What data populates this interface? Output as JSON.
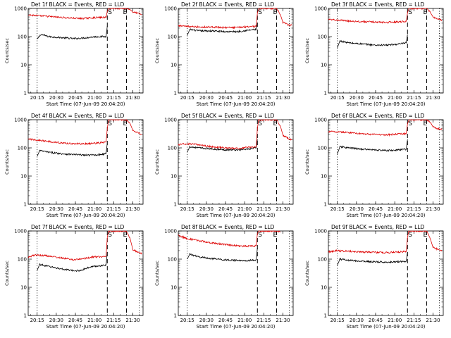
{
  "chart_data": [
    {
      "type": "line",
      "title": "Det 1f BLACK = Events, RED = LLD",
      "xlabel": "Start Time (07-Jun-09 20:04:20)",
      "ylabel": "Counts/sec",
      "yscale": "log",
      "ylim": [
        1,
        1000
      ],
      "yticks": [
        "1",
        "10",
        "100",
        "1000"
      ],
      "xticks": [
        "20:15",
        "20:30",
        "20:45",
        "21:00",
        "21:15",
        "21:30"
      ],
      "xlim_min": [
        4,
        94
      ],
      "markers": [
        "S",
        "E"
      ],
      "event_lines_min": {
        "dotted": [
          11,
          91
        ],
        "dashed": [
          66,
          81
        ]
      },
      "series": [
        {
          "name": "BLACK = Events",
          "color": "#000000",
          "x_min": [
            11,
            14,
            20,
            30,
            40,
            45,
            50,
            55,
            60,
            65,
            66
          ],
          "y": [
            80,
            120,
            100,
            92,
            85,
            88,
            92,
            98,
            100,
            100,
            240
          ]
        },
        {
          "name": "RED = LLD",
          "color": "#dd0000",
          "x_min": [
            4,
            10,
            20,
            30,
            40,
            45,
            50,
            55,
            60,
            65,
            66,
            67,
            75,
            81,
            84,
            86,
            90,
            93
          ],
          "y": [
            600,
            560,
            520,
            480,
            450,
            440,
            450,
            470,
            480,
            480,
            800,
            1000,
            1000,
            1000,
            900,
            750,
            680,
            600
          ]
        }
      ]
    },
    {
      "type": "line",
      "title": "Det 2f BLACK = Events, RED = LLD",
      "xlabel": "Start Time (07-Jun-09 20:04:20)",
      "ylabel": "Counts/sec",
      "yscale": "log",
      "ylim": [
        1,
        1000
      ],
      "yticks": [
        "1",
        "10",
        "100",
        "1000"
      ],
      "xticks": [
        "20:15",
        "20:30",
        "20:45",
        "21:00",
        "21:15",
        "21:30"
      ],
      "xlim_min": [
        4,
        94
      ],
      "markers": [
        "S",
        "E"
      ],
      "event_lines_min": {
        "dotted": [
          11,
          91
        ],
        "dashed": [
          66,
          81
        ]
      },
      "series": [
        {
          "name": "BLACK = Events",
          "color": "#000000",
          "x_min": [
            11,
            13,
            20,
            30,
            40,
            50,
            55,
            60,
            65,
            66
          ],
          "y": [
            110,
            180,
            160,
            160,
            150,
            150,
            160,
            170,
            180,
            300
          ]
        },
        {
          "name": "RED = LLD",
          "color": "#dd0000",
          "x_min": [
            4,
            10,
            20,
            30,
            40,
            50,
            55,
            60,
            65,
            66,
            67,
            75,
            81,
            84,
            86,
            90,
            93
          ],
          "y": [
            240,
            230,
            220,
            220,
            210,
            210,
            220,
            230,
            230,
            700,
            1000,
            1000,
            1000,
            600,
            320,
            260,
            250
          ]
        }
      ]
    },
    {
      "type": "line",
      "title": "Det 3f BLACK = Events, RED = LLD",
      "xlabel": "Start Time (07-Jun-09 20:04:20)",
      "ylabel": "Counts/sec",
      "yscale": "log",
      "ylim": [
        1,
        1000
      ],
      "yticks": [
        "1",
        "10",
        "100",
        "1000"
      ],
      "xticks": [
        "20:15",
        "20:30",
        "20:45",
        "21:00",
        "21:15",
        "21:30"
      ],
      "xlim_min": [
        4,
        94
      ],
      "markers": [
        "S",
        "E"
      ],
      "event_lines_min": {
        "dotted": [
          11,
          91
        ],
        "dashed": [
          66,
          81
        ]
      },
      "series": [
        {
          "name": "BLACK = Events",
          "color": "#000000",
          "x_min": [
            11,
            13,
            20,
            30,
            40,
            50,
            55,
            60,
            65,
            66
          ],
          "y": [
            40,
            70,
            60,
            55,
            50,
            50,
            52,
            55,
            60,
            120
          ]
        },
        {
          "name": "RED = LLD",
          "color": "#dd0000",
          "x_min": [
            4,
            10,
            20,
            30,
            40,
            50,
            55,
            60,
            65,
            66,
            67,
            75,
            81,
            84,
            86,
            90,
            93
          ],
          "y": [
            400,
            390,
            360,
            340,
            330,
            320,
            330,
            340,
            350,
            700,
            1000,
            1000,
            1000,
            700,
            500,
            420,
            380
          ]
        }
      ]
    },
    {
      "type": "line",
      "title": "Det 4f BLACK = Events, RED = LLD",
      "xlabel": "Start Time (07-Jun-09 20:04:20)",
      "ylabel": "Counts/sec",
      "yscale": "log",
      "ylim": [
        1,
        1000
      ],
      "yticks": [
        "1",
        "10",
        "100",
        "1000"
      ],
      "xticks": [
        "20:15",
        "20:30",
        "20:45",
        "21:00",
        "21:15",
        "21:30"
      ],
      "xlim_min": [
        4,
        94
      ],
      "markers": [
        "S",
        "E"
      ],
      "event_lines_min": {
        "dotted": [
          11,
          91
        ],
        "dashed": [
          66,
          81
        ]
      },
      "series": [
        {
          "name": "BLACK = Events",
          "color": "#000000",
          "x_min": [
            11,
            13,
            20,
            30,
            40,
            50,
            55,
            60,
            65,
            66
          ],
          "y": [
            50,
            80,
            70,
            62,
            58,
            55,
            56,
            58,
            62,
            150
          ]
        },
        {
          "name": "RED = LLD",
          "color": "#dd0000",
          "x_min": [
            4,
            10,
            20,
            30,
            40,
            50,
            55,
            60,
            65,
            66,
            67,
            75,
            81,
            84,
            86,
            90,
            93
          ],
          "y": [
            210,
            190,
            170,
            150,
            140,
            140,
            145,
            150,
            160,
            500,
            1000,
            1000,
            1000,
            700,
            420,
            350,
            300
          ]
        }
      ]
    },
    {
      "type": "line",
      "title": "Det 5f BLACK = Events, RED = LLD",
      "xlabel": "Start Time (07-Jun-09 20:04:20)",
      "ylabel": "Counts/sec",
      "yscale": "log",
      "ylim": [
        1,
        1000
      ],
      "yticks": [
        "1",
        "10",
        "100",
        "1000"
      ],
      "xticks": [
        "20:15",
        "20:30",
        "20:45",
        "21:00",
        "21:15",
        "21:30"
      ],
      "xlim_min": [
        4,
        94
      ],
      "markers": [
        "S",
        "E"
      ],
      "event_lines_min": {
        "dotted": [
          11,
          91
        ],
        "dashed": [
          66,
          81
        ]
      },
      "series": [
        {
          "name": "BLACK = Events",
          "color": "#000000",
          "x_min": [
            11,
            13,
            20,
            30,
            40,
            50,
            55,
            60,
            65,
            66
          ],
          "y": [
            70,
            110,
            100,
            92,
            86,
            85,
            88,
            92,
            100,
            200
          ]
        },
        {
          "name": "RED = LLD",
          "color": "#dd0000",
          "x_min": [
            4,
            10,
            20,
            30,
            40,
            50,
            55,
            60,
            65,
            66,
            67,
            75,
            81,
            84,
            86,
            90,
            93
          ],
          "y": [
            130,
            140,
            130,
            110,
            100,
            95,
            100,
            105,
            110,
            500,
            1000,
            1000,
            1000,
            600,
            280,
            220,
            190
          ]
        }
      ]
    },
    {
      "type": "line",
      "title": "Det 6f BLACK = Events, RED = LLD",
      "xlabel": "Start Time (07-Jun-09 20:04:20)",
      "ylabel": "Counts/sec",
      "yscale": "log",
      "ylim": [
        1,
        1000
      ],
      "yticks": [
        "1",
        "10",
        "100",
        "1000"
      ],
      "xticks": [
        "20:15",
        "20:30",
        "20:45",
        "21:00",
        "21:15",
        "21:30"
      ],
      "xlim_min": [
        4,
        94
      ],
      "markers": [
        "S",
        "E"
      ],
      "event_lines_min": {
        "dotted": [
          11,
          91
        ],
        "dashed": [
          66,
          81
        ]
      },
      "series": [
        {
          "name": "BLACK = Events",
          "color": "#000000",
          "x_min": [
            11,
            13,
            20,
            30,
            40,
            50,
            55,
            60,
            65,
            66
          ],
          "y": [
            60,
            110,
            100,
            90,
            85,
            80,
            82,
            85,
            90,
            200
          ]
        },
        {
          "name": "RED = LLD",
          "color": "#dd0000",
          "x_min": [
            4,
            10,
            20,
            30,
            40,
            50,
            55,
            60,
            65,
            66,
            67,
            75,
            81,
            84,
            86,
            90,
            93
          ],
          "y": [
            380,
            370,
            350,
            320,
            300,
            290,
            300,
            310,
            320,
            700,
            1000,
            1000,
            1000,
            800,
            550,
            480,
            450
          ]
        }
      ]
    },
    {
      "type": "line",
      "title": "Det 7f BLACK = Events, RED = LLD",
      "xlabel": "Start Time (07-Jun-09 20:04:20)",
      "ylabel": "Counts/sec",
      "yscale": "log",
      "ylim": [
        1,
        1000
      ],
      "yticks": [
        "1",
        "10",
        "100",
        "1000"
      ],
      "xticks": [
        "20:15",
        "20:30",
        "20:45",
        "21:00",
        "21:15",
        "21:30"
      ],
      "xlim_min": [
        4,
        94
      ],
      "markers": [
        "S",
        "E"
      ],
      "event_lines_min": {
        "dotted": [
          11,
          91
        ],
        "dashed": [
          66,
          81
        ]
      },
      "series": [
        {
          "name": "BLACK = Events",
          "color": "#000000",
          "x_min": [
            11,
            13,
            20,
            30,
            40,
            45,
            50,
            55,
            60,
            65,
            66
          ],
          "y": [
            40,
            65,
            55,
            45,
            38,
            40,
            48,
            55,
            58,
            62,
            180
          ]
        },
        {
          "name": "RED = LLD",
          "color": "#dd0000",
          "x_min": [
            4,
            10,
            20,
            30,
            40,
            45,
            50,
            55,
            60,
            65,
            66,
            67,
            75,
            81,
            84,
            86,
            90,
            93
          ],
          "y": [
            120,
            140,
            130,
            110,
            95,
            100,
            110,
            120,
            120,
            130,
            600,
            1000,
            1000,
            1000,
            500,
            220,
            170,
            160
          ]
        }
      ]
    },
    {
      "type": "line",
      "title": "Det 8f BLACK = Events, RED = LLD",
      "xlabel": "Start Time (07-Jun-09 20:04:20)",
      "ylabel": "Counts/sec",
      "yscale": "log",
      "ylim": [
        1,
        1000
      ],
      "yticks": [
        "1",
        "10",
        "100",
        "1000"
      ],
      "xticks": [
        "20:15",
        "20:30",
        "20:45",
        "21:00",
        "21:15",
        "21:30"
      ],
      "xlim_min": [
        4,
        94
      ],
      "markers": [
        "S",
        "E"
      ],
      "event_lines_min": {
        "dotted": [
          11,
          91
        ],
        "dashed": [
          66,
          81
        ]
      },
      "series": [
        {
          "name": "BLACK = Events",
          "color": "#000000",
          "x_min": [
            11,
            13,
            20,
            30,
            40,
            50,
            55,
            60,
            65,
            66
          ],
          "y": [
            100,
            150,
            120,
            105,
            95,
            90,
            88,
            90,
            95,
            250
          ]
        },
        {
          "name": "RED = LLD",
          "color": "#dd0000",
          "x_min": [
            4,
            10,
            20,
            30,
            40,
            50,
            55,
            60,
            65,
            66,
            67,
            75,
            81,
            84
          ],
          "y": [
            700,
            550,
            450,
            380,
            330,
            300,
            290,
            290,
            300,
            800,
            1000,
            1000,
            1000,
            900
          ]
        }
      ]
    },
    {
      "type": "line",
      "title": "Det 9f BLACK = Events, RED = LLD",
      "xlabel": "Start Time (07-Jun-09 20:04:20)",
      "ylabel": "Counts/sec",
      "yscale": "log",
      "ylim": [
        1,
        1000
      ],
      "yticks": [
        "1",
        "10",
        "100",
        "1000"
      ],
      "xticks": [
        "20:15",
        "20:30",
        "20:45",
        "21:00",
        "21:15",
        "21:30"
      ],
      "xlim_min": [
        4,
        94
      ],
      "markers": [
        "S",
        "E"
      ],
      "event_lines_min": {
        "dotted": [
          11,
          91
        ],
        "dashed": [
          66,
          81
        ]
      },
      "series": [
        {
          "name": "BLACK = Events",
          "color": "#000000",
          "x_min": [
            11,
            13,
            20,
            30,
            40,
            50,
            55,
            60,
            65,
            66
          ],
          "y": [
            60,
            100,
            90,
            85,
            80,
            78,
            80,
            82,
            85,
            180
          ]
        },
        {
          "name": "RED = LLD",
          "color": "#dd0000",
          "x_min": [
            4,
            10,
            20,
            30,
            40,
            50,
            55,
            60,
            65,
            66,
            67,
            75,
            81,
            84,
            86,
            90,
            93
          ],
          "y": [
            180,
            200,
            190,
            180,
            175,
            170,
            175,
            180,
            185,
            600,
            1000,
            1000,
            1000,
            500,
            260,
            220,
            200
          ]
        }
      ]
    }
  ]
}
